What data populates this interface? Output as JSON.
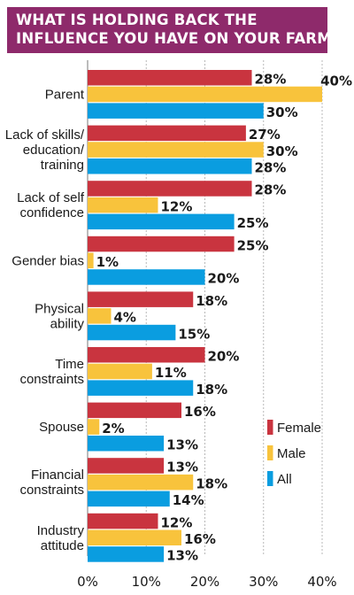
{
  "title_lines": [
    "WHAT IS HOLDING BACK THE",
    "INFLUENCE YOU HAVE ON YOUR FARM?"
  ],
  "colors": {
    "title_bg": "#8e2a6b",
    "female": "#c9343f",
    "male": "#f8c33c",
    "all": "#0a9de0"
  },
  "chart_data": {
    "type": "bar",
    "orientation": "horizontal",
    "title": "WHAT IS HOLDING BACK THE INFLUENCE YOU HAVE ON YOUR FARM?",
    "categories": [
      [
        "Parent"
      ],
      [
        "Lack of skills/",
        "education/",
        "training"
      ],
      [
        "Lack of self",
        "confidence"
      ],
      [
        "Gender bias"
      ],
      [
        "Physical",
        "ability"
      ],
      [
        "Time",
        "constraints"
      ],
      [
        "Spouse"
      ],
      [
        "Financial",
        "constraints"
      ],
      [
        "Industry",
        "attitude"
      ]
    ],
    "series": [
      {
        "name": "Female",
        "color": "#c9343f",
        "values": [
          28,
          27,
          28,
          25,
          18,
          20,
          16,
          13,
          12
        ]
      },
      {
        "name": "Male",
        "color": "#f8c33c",
        "values": [
          40,
          30,
          12,
          1,
          4,
          11,
          2,
          18,
          16
        ]
      },
      {
        "name": "All",
        "color": "#0a9de0",
        "values": [
          30,
          28,
          25,
          20,
          15,
          18,
          13,
          14,
          13
        ]
      }
    ],
    "value_suffix": "%",
    "xlim": [
      0,
      40
    ],
    "xticks": [
      "0%",
      "10%",
      "20%",
      "30%",
      "40%"
    ],
    "grid": true,
    "legend_position": "bottom-right"
  }
}
